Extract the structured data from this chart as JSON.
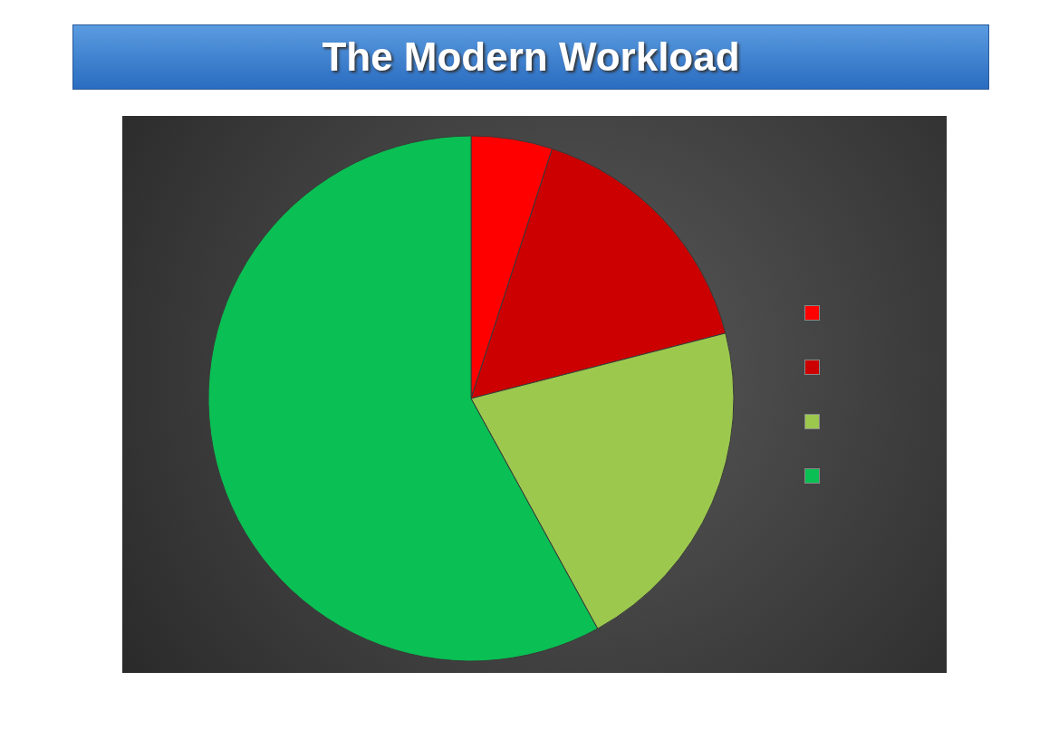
{
  "chart_data": {
    "type": "pie",
    "title": "The Modern Workload",
    "categories": [
      null,
      null,
      null,
      null
    ],
    "values": [
      5,
      16,
      21,
      58
    ],
    "colors": [
      "#ff0000",
      "#cc0000",
      "#9cc84e",
      "#0abf53"
    ]
  }
}
